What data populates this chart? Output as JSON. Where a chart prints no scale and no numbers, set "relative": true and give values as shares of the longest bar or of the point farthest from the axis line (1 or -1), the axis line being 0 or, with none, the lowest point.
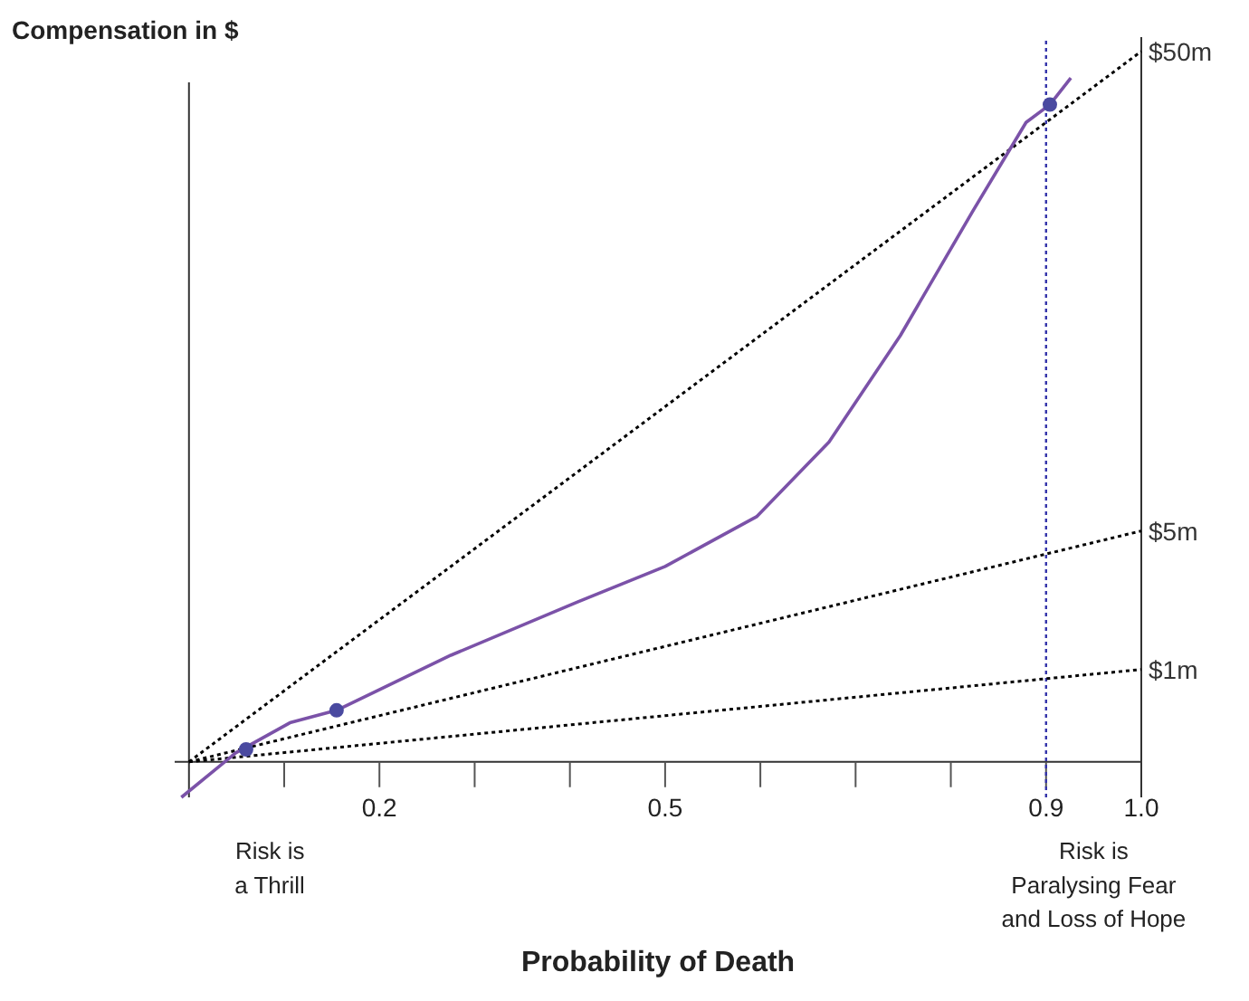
{
  "chart_data": {
    "type": "line",
    "relative": true,
    "title": "Compensation in $",
    "xlabel": "Probability of Death",
    "xlim": [
      -0.015,
      1.0
    ],
    "ylim": [
      -0.05,
      1.02
    ],
    "xticks": [
      {
        "value": 0.1,
        "label": null
      },
      0.2,
      {
        "value": 0.3,
        "label": null
      },
      {
        "value": 0.4,
        "label": null
      },
      0.5,
      {
        "value": 0.6,
        "label": null
      },
      {
        "value": 0.7,
        "label": null
      },
      {
        "value": 0.8,
        "label": null
      },
      0.9,
      {
        "value": 1.0,
        "label": "1.0"
      }
    ],
    "tick_labels": "x",
    "series": [
      {
        "name": "$50m",
        "type": "line",
        "line_style": "dotted",
        "color": "#000000",
        "x": [
          0,
          1.0
        ],
        "values": [
          0,
          1
        ]
      },
      {
        "name": "$5m",
        "type": "line",
        "line_style": "dotted",
        "color": "#000000",
        "x": [
          0,
          1.0
        ],
        "values": [
          0,
          0.325
        ]
      },
      {
        "name": "$1m",
        "type": "line",
        "line_style": "dotted",
        "color": "#000000",
        "x": [
          0,
          1.0
        ],
        "values": [
          0,
          0.13
        ]
      },
      {
        "type": "line",
        "line_style": "solid",
        "color": "#7b52a8",
        "x": [
          -0.008,
          0.049,
          0.106,
          0.155,
          0.275,
          0.408,
          0.5,
          0.596,
          0.672,
          0.747,
          0.823,
          0.879,
          0.904,
          0.926
        ],
        "values": [
          -0.05,
          0.0125,
          0.055,
          0.0725,
          0.15,
          0.225,
          0.275,
          0.345,
          0.45,
          0.6,
          0.775,
          0.9,
          0.925,
          0.9625
        ]
      },
      {
        "type": "scatter",
        "marker": "circle",
        "color": "#4a4aa0",
        "x": [
          0.06,
          0.155,
          0.904
        ],
        "values": [
          0.0175,
          0.0725,
          0.925
        ]
      }
    ],
    "ref_lines": [
      {
        "axis": "x",
        "value": 0.9,
        "color": "#3333aa",
        "line_style": "dotted"
      }
    ],
    "annotations": [
      "Risk is\na Thrill",
      "Risk is\nParalysing Fear\nand Loss of Hope"
    ]
  }
}
